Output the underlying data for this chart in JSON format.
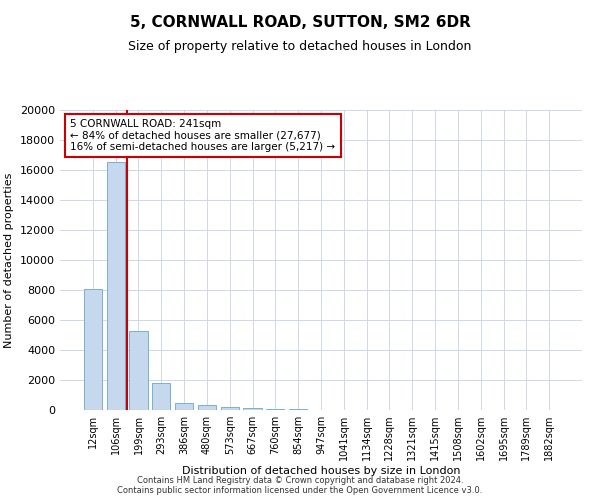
{
  "title": "5, CORNWALL ROAD, SUTTON, SM2 6DR",
  "subtitle": "Size of property relative to detached houses in London",
  "xlabel": "Distribution of detached houses by size in London",
  "ylabel": "Number of detached properties",
  "categories": [
    "12sqm",
    "106sqm",
    "199sqm",
    "293sqm",
    "386sqm",
    "480sqm",
    "573sqm",
    "667sqm",
    "760sqm",
    "854sqm",
    "947sqm",
    "1041sqm",
    "1134sqm",
    "1228sqm",
    "1321sqm",
    "1415sqm",
    "1508sqm",
    "1602sqm",
    "1695sqm",
    "1789sqm",
    "1882sqm"
  ],
  "values": [
    8050,
    16500,
    5300,
    1800,
    500,
    350,
    200,
    150,
    100,
    60,
    0,
    0,
    0,
    0,
    0,
    0,
    0,
    0,
    0,
    0,
    0
  ],
  "bar_color": "#c5d8ed",
  "bar_edge_color": "#7aafd4",
  "vline_x": 2.0,
  "vline_color": "#cc0000",
  "annotation_text": "5 CORNWALL ROAD: 241sqm\n← 84% of detached houses are smaller (27,677)\n16% of semi-detached houses are larger (5,217) →",
  "annotation_box_color": "#ffffff",
  "annotation_box_edge_color": "#cc0000",
  "ylim": [
    0,
    20000
  ],
  "yticks": [
    0,
    2000,
    4000,
    6000,
    8000,
    10000,
    12000,
    14000,
    16000,
    18000,
    20000
  ],
  "footnote": "Contains HM Land Registry data © Crown copyright and database right 2024.\nContains public sector information licensed under the Open Government Licence v3.0.",
  "bg_color": "#ffffff",
  "grid_color": "#d0d8e8",
  "title_fontsize": 11,
  "subtitle_fontsize": 9,
  "tick_fontsize": 7,
  "ylabel_fontsize": 8,
  "xlabel_fontsize": 8,
  "footnote_fontsize": 6,
  "annot_fontsize": 7.5
}
